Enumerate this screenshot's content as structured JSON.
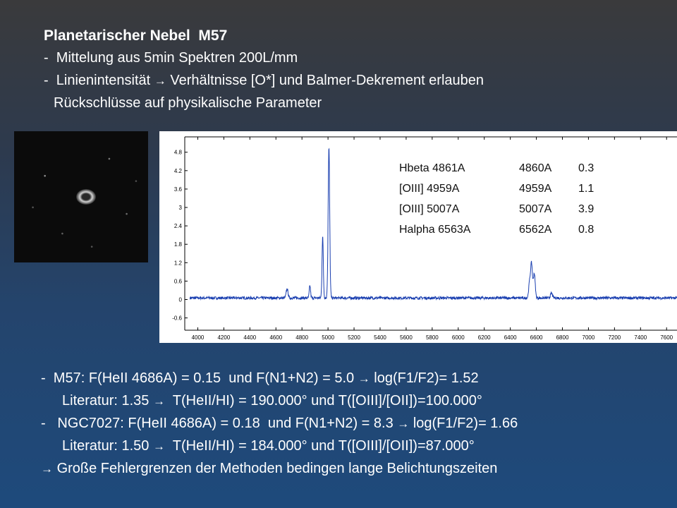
{
  "header": {
    "title": "Planetarischer Nebel  M57",
    "line1_dash": "-",
    "line1_text": "Mittelung aus 5min Spektren 200L/mm",
    "line2_dash": "-",
    "line2_pre": "Linienintensität",
    "line2_post": "Verhältnisse [O*] und Balmer-Dekrement erlauben",
    "line3": "Rückschlüsse auf physikalische Parameter"
  },
  "arrow_glyph": "→",
  "line_table": [
    [
      "Hbeta 4861A",
      "4860A",
      "0.3"
    ],
    [
      "[OIII] 4959A",
      "4959A",
      "1.1"
    ],
    [
      "[OIII] 5007A",
      "5007A",
      "3.9"
    ],
    [
      "Halpha 6563A",
      "6562A",
      "0.8"
    ]
  ],
  "chart_data": {
    "type": "line",
    "x_ticks": [
      "4000",
      "4200",
      "4400",
      "4600",
      "4800",
      "5000",
      "5200",
      "5400",
      "5600",
      "5800",
      "6000",
      "6200",
      "6400",
      "6600",
      "6800",
      "7000",
      "7200",
      "7400",
      "7600"
    ],
    "y_ticks": [
      "-0.6",
      "0",
      "0.6",
      "1.2",
      "1.8",
      "2.4",
      "3",
      "3.6",
      "4.2",
      "4.8"
    ],
    "xlim": [
      3900,
      7680
    ],
    "ylim": [
      -1.0,
      5.3
    ],
    "baseline": 0.05,
    "peaks": [
      {
        "x": 4686,
        "y": 0.3,
        "width": 7
      },
      {
        "x": 4861,
        "y": 0.4,
        "width": 5
      },
      {
        "x": 4959,
        "y": 2.0,
        "width": 5
      },
      {
        "x": 5007,
        "y": 4.9,
        "width": 6
      },
      {
        "x": 6548,
        "y": 0.5,
        "width": 7
      },
      {
        "x": 6563,
        "y": 1.1,
        "width": 7
      },
      {
        "x": 6584,
        "y": 0.8,
        "width": 7
      },
      {
        "x": 6716,
        "y": 0.15,
        "width": 8
      }
    ],
    "line_color": "#1a3fb0"
  },
  "bottom": {
    "b1_dash": "-",
    "b1_pre": "M57: F(HeII 4686A) = 0.15  und F(N1+N2) = 5.0",
    "b1_post": "log(F1/F2)= 1.52",
    "b2_pre": "Literatur: 1.35",
    "b2_post": "T(HeII/HI) = 190.000° und T([OIII]/[OII])=100.000°",
    "b3_dash": "-",
    "b3_pre": "NGC7027: F(HeII 4686A) = 0.18  und F(N1+N2) = 8.3",
    "b3_post": "log(F1/F2)= 1.66",
    "b4_pre": "Literatur: 1.50",
    "b4_post": "T(HeII/HI) = 184.000° und T([OIII]/[OII])=87.000°",
    "b5_text": "Große Fehlergrenzen der Methoden bedingen lange Belichtungszeiten"
  }
}
